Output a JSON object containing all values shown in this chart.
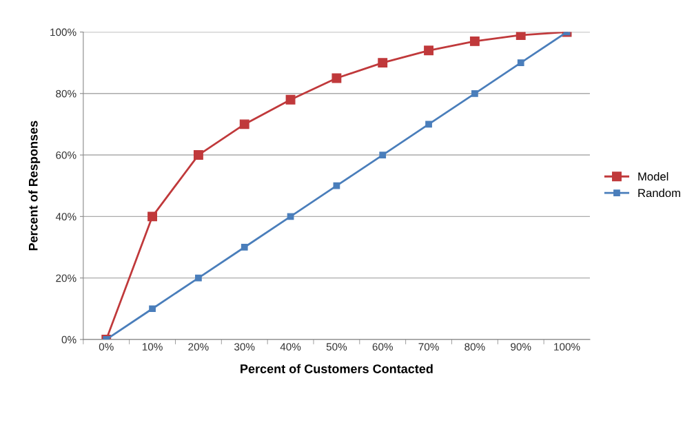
{
  "chart_data": {
    "type": "line",
    "xlabel": "Percent of Customers Contacted",
    "ylabel": "Percent of Responses",
    "categories": [
      "0%",
      "10%",
      "20%",
      "30%",
      "40%",
      "50%",
      "60%",
      "70%",
      "80%",
      "90%",
      "100%"
    ],
    "series": [
      {
        "name": "Model",
        "color": "#c0393b",
        "values": [
          0,
          40,
          60,
          70,
          78,
          85,
          90,
          94,
          97,
          99,
          100
        ]
      },
      {
        "name": "Random",
        "color": "#4a7ebb",
        "values": [
          0,
          10,
          20,
          30,
          40,
          50,
          60,
          70,
          80,
          90,
          100
        ]
      }
    ],
    "ylim": [
      0,
      100
    ],
    "yticks": [
      {
        "value": 0,
        "label": "0%"
      },
      {
        "value": 20,
        "label": "20%"
      },
      {
        "value": 40,
        "label": "40%"
      },
      {
        "value": 60,
        "label": "60%"
      },
      {
        "value": 80,
        "label": "80%"
      },
      {
        "value": 100,
        "label": "100%"
      }
    ],
    "grid": "y",
    "legend": "right",
    "marker": "square",
    "line_style": "solid"
  }
}
